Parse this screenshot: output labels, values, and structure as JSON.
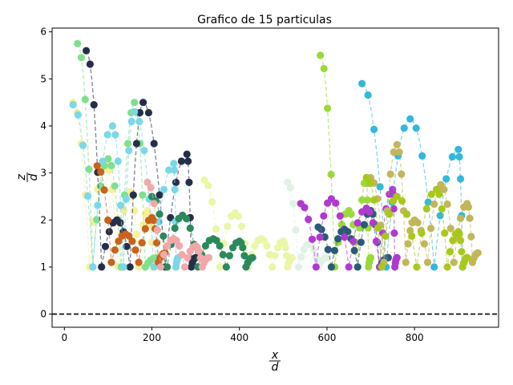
{
  "chart_data": {
    "type": "scatter",
    "title": "Grafico de 15 particulas",
    "xlabel_num": "x",
    "xlabel_den": "d",
    "ylabel_num": "z",
    "ylabel_den": "d",
    "xlim": [
      -28,
      992
    ],
    "ylim": [
      -0.28,
      6.08
    ],
    "xticks": [
      0,
      200,
      400,
      600,
      800
    ],
    "yticks": [
      0,
      1,
      2,
      3,
      4,
      5,
      6
    ],
    "grid": false,
    "legend": "none",
    "reference_line": {
      "y": 0,
      "style": "dashed",
      "color": "#000000"
    },
    "series": [
      {
        "color": "#f7ef9a",
        "x0": 20,
        "x1": 215,
        "peaks": [
          [
            20,
            4.5
          ],
          [
            95,
            3.2
          ],
          [
            150,
            2.6
          ],
          [
            190,
            2.2
          ]
        ],
        "bounce": 1.0
      },
      {
        "color": "#e9f7a6",
        "x0": 320,
        "x1": 520,
        "peaks": [
          [
            320,
            2.85
          ],
          [
            390,
            2.15
          ],
          [
            450,
            1.6
          ],
          [
            500,
            1.55
          ]
        ],
        "bounce": 1.0
      },
      {
        "color": "#7fe08c",
        "x0": 30,
        "x1": 210,
        "peaks": [
          [
            30,
            5.75
          ],
          [
            100,
            3.3
          ],
          [
            160,
            4.5
          ]
        ],
        "bounce": 1.0
      },
      {
        "color": "#262f4a",
        "x0": 50,
        "x1": 300,
        "peaks": [
          [
            50,
            5.6
          ],
          [
            120,
            2.0
          ],
          [
            180,
            4.5
          ],
          [
            280,
            3.4
          ]
        ],
        "bounce": 1.0
      },
      {
        "color": "#7ad8e8",
        "x0": 20,
        "x1": 260,
        "peaks": [
          [
            20,
            4.45
          ],
          [
            110,
            4.0
          ],
          [
            160,
            4.3
          ],
          [
            250,
            3.2
          ]
        ],
        "bounce": 1.0
      },
      {
        "color": "#c8621c",
        "x0": 75,
        "x1": 230,
        "peaks": [
          [
            75,
            3.15
          ],
          [
            140,
            1.7
          ],
          [
            200,
            2.05
          ]
        ],
        "bounce": 1.1
      },
      {
        "color": "#2b8a5c",
        "x0": 200,
        "x1": 430,
        "peaks": [
          [
            200,
            2.5
          ],
          [
            270,
            2.1
          ],
          [
            340,
            1.6
          ],
          [
            400,
            1.55
          ]
        ],
        "bounce": 1.0
      },
      {
        "color": "#f2a8a8",
        "x0": 190,
        "x1": 330,
        "peaks": [
          [
            190,
            2.8
          ],
          [
            250,
            1.6
          ],
          [
            300,
            1.45
          ]
        ],
        "bounce": 1.0
      },
      {
        "color": "#e2f1e5",
        "x0": 510,
        "x1": 600,
        "peaks": [
          [
            510,
            2.8
          ],
          [
            560,
            1.5
          ]
        ],
        "bounce": 1.0
      },
      {
        "color": "#9ad93b",
        "x0": 585,
        "x1": 700,
        "peaks": [
          [
            585,
            5.5
          ],
          [
            650,
            2.2
          ],
          [
            690,
            2.9
          ]
        ],
        "bounce": 1.0
      },
      {
        "color": "#2a5a78",
        "x0": 580,
        "x1": 740,
        "peaks": [
          [
            580,
            1.85
          ],
          [
            640,
            1.8
          ],
          [
            700,
            2.2
          ]
        ],
        "bounce": 1.0
      },
      {
        "color": "#b03ad0",
        "x0": 540,
        "x1": 760,
        "peaks": [
          [
            540,
            2.35
          ],
          [
            610,
            2.45
          ],
          [
            690,
            2.25
          ],
          [
            750,
            2.65
          ]
        ],
        "bounce": 1.0
      },
      {
        "color": "#33b8dc",
        "x0": 680,
        "x1": 920,
        "peaks": [
          [
            680,
            4.9
          ],
          [
            790,
            4.15
          ],
          [
            900,
            3.5
          ]
        ],
        "bounce": 1.0
      },
      {
        "color": "#c2b65a",
        "x0": 700,
        "x1": 945,
        "peaks": [
          [
            700,
            2.9
          ],
          [
            760,
            3.6
          ],
          [
            800,
            2.0
          ],
          [
            860,
            2.75
          ],
          [
            920,
            2.35
          ]
        ],
        "bounce": 1.1
      },
      {
        "color": "#a8c81c",
        "x0": 690,
        "x1": 920,
        "peaks": [
          [
            690,
            2.9
          ],
          [
            760,
            2.5
          ],
          [
            850,
            2.65
          ],
          [
            900,
            1.75
          ]
        ],
        "bounce": 1.0
      }
    ]
  }
}
